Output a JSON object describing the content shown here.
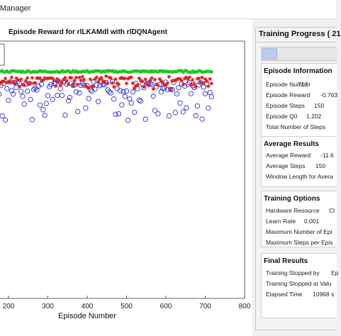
{
  "window": {
    "title": "Manager"
  },
  "chart_data": {
    "type": "scatter",
    "title": "Episode Reward for rlLKAMdl with rlDQNAgent",
    "xlabel": "Episode Number",
    "ylabel": "",
    "x_ticks": [
      200,
      300,
      400,
      500,
      600,
      700,
      800
    ],
    "xlim": [
      140,
      800
    ],
    "episodes": 717,
    "series": [
      {
        "kind": "episode_reward",
        "color": "#2b2bd6",
        "marker": "circle",
        "baseline": -5,
        "variation": 12
      },
      {
        "kind": "average_reward",
        "color": "#e02020",
        "marker": "star",
        "baseline": -2,
        "variation": 6
      },
      {
        "kind": "episode_q0",
        "color": "#22c422",
        "marker": "star",
        "baseline": 1.2,
        "variation": 1
      }
    ],
    "grid": false
  },
  "side": {
    "title": "Training Progress ( 21",
    "progress_fraction": 0.2,
    "episode_info": {
      "heading": "Episode Information",
      "rows": [
        {
          "label": "Episode Number",
          "value": "717"
        },
        {
          "label": "Episode Reward",
          "value": "-0.763"
        },
        {
          "label": "Episode Steps",
          "value": "150"
        },
        {
          "label": "Episode Q0",
          "value": "1.202"
        },
        {
          "label": "Total Number of Steps",
          "value": ""
        }
      ]
    },
    "average_results": {
      "heading": "Average Results",
      "rows": [
        {
          "label": "Average Reward",
          "value": "-11.6"
        },
        {
          "label": "Average Steps",
          "value": "150"
        },
        {
          "label": "Window Length for Avera",
          "value": ""
        }
      ]
    },
    "training_options": {
      "heading": "Training Options",
      "rows": [
        {
          "label": "Hardware Resource",
          "value": "Cl"
        },
        {
          "label": "Learn Rate",
          "value": "0.001"
        },
        {
          "label": "Maximum Number of Epi",
          "value": ""
        },
        {
          "label": "Maximum Steps per Epis",
          "value": ""
        }
      ]
    },
    "final_results": {
      "heading": "Final Results",
      "rows": [
        {
          "label": "Training Stopped by",
          "value": "Ep"
        },
        {
          "label": "Training Stopped at Valu",
          "value": ""
        },
        {
          "label": "Elapsed Time",
          "value": "10968 s"
        }
      ]
    }
  }
}
